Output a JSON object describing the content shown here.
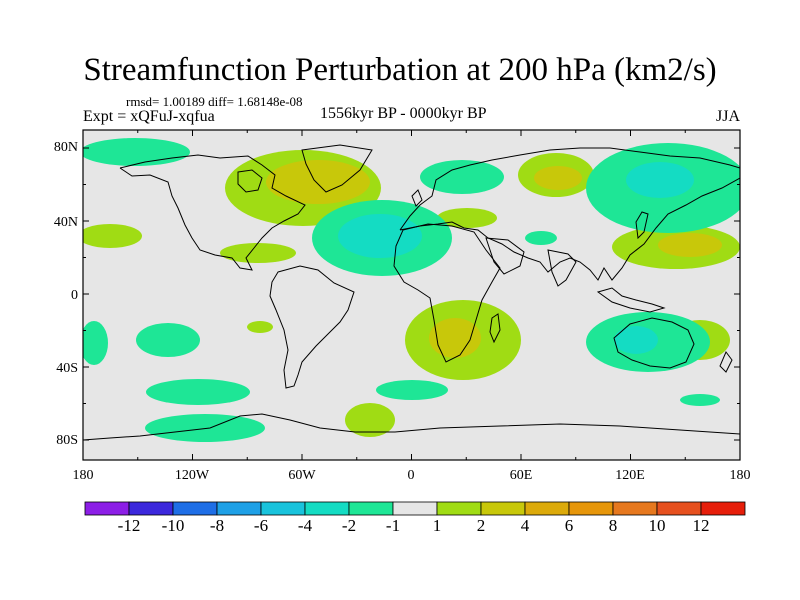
{
  "title": "Streamfunction Perturbation at 200 hPa (km2/s)",
  "stats_line": "rmsd= 1.00189 diff= 1.68148e-08",
  "experiment_label": "Expt = xQFuJ-xqfua",
  "period_label": "1556kyr BP - 0000kyr BP",
  "season_label": "JJA",
  "lat_ticks": [
    "80N",
    "40N",
    "0",
    "40S",
    "80S"
  ],
  "lon_ticks": [
    "180",
    "120W",
    "60W",
    "0",
    "60E",
    "120E",
    "180"
  ],
  "colorbar": {
    "colors": [
      "#8c1ee6",
      "#3c28dc",
      "#1e6ee6",
      "#1ea0e6",
      "#19c3dc",
      "#14dcc3",
      "#1ee696",
      "#e6e6e6",
      "#a0dc14",
      "#c8c80a",
      "#dcaa0a",
      "#e6960a",
      "#e6781e",
      "#e6501e",
      "#e61e0a"
    ],
    "labels": [
      "-12",
      "-10",
      "-8",
      "-6",
      "-4",
      "-2",
      "-1",
      "1",
      "2",
      "4",
      "6",
      "8",
      "10",
      "12"
    ]
  },
  "colors": {
    "background": "#e6e6e6",
    "frame": "#000000"
  }
}
